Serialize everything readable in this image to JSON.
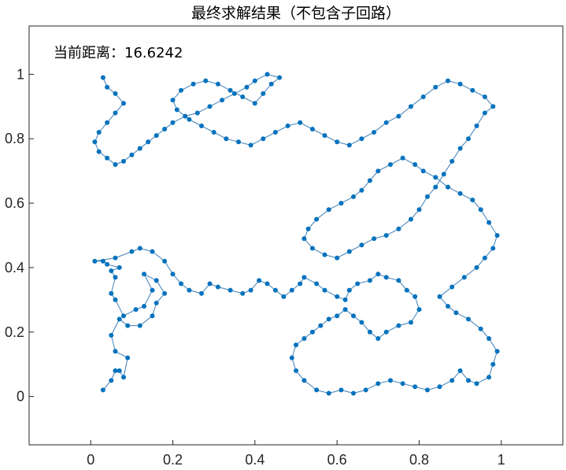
{
  "chart_data": {
    "type": "line",
    "title": "最终求解结果（不包含子回路）",
    "annotation": "当前距离：16.6242",
    "xlabel": "",
    "ylabel": "",
    "xlim": [
      -0.15,
      1.15
    ],
    "ylim": [
      -0.15,
      1.15
    ],
    "x_ticks": [
      0,
      0.2,
      0.4,
      0.6,
      0.8,
      1
    ],
    "y_ticks": [
      0,
      0.2,
      0.4,
      0.6,
      0.8,
      1
    ],
    "x_tick_labels": [
      "0",
      "0.2",
      "0.4",
      "0.6",
      "0.8",
      "1"
    ],
    "y_tick_labels": [
      "0",
      "0.2",
      "0.4",
      "0.6",
      "0.8",
      "1"
    ],
    "grid": false,
    "line_color": "#3f7fb8",
    "marker_color": "#0072bd",
    "route": [
      [
        0.03,
        0.02
      ],
      [
        0.05,
        0.05
      ],
      [
        0.06,
        0.08
      ],
      [
        0.07,
        0.08
      ],
      [
        0.08,
        0.06
      ],
      [
        0.09,
        0.12
      ],
      [
        0.06,
        0.14
      ],
      [
        0.05,
        0.19
      ],
      [
        0.07,
        0.24
      ],
      [
        0.09,
        0.22
      ],
      [
        0.12,
        0.22
      ],
      [
        0.15,
        0.25
      ],
      [
        0.16,
        0.29
      ],
      [
        0.18,
        0.32
      ],
      [
        0.16,
        0.36
      ],
      [
        0.13,
        0.38
      ],
      [
        0.15,
        0.33
      ],
      [
        0.13,
        0.28
      ],
      [
        0.11,
        0.27
      ],
      [
        0.08,
        0.25
      ],
      [
        0.06,
        0.3
      ],
      [
        0.05,
        0.32
      ],
      [
        0.06,
        0.37
      ],
      [
        0.05,
        0.39
      ],
      [
        0.07,
        0.4
      ],
      [
        0.04,
        0.41
      ],
      [
        0.03,
        0.42
      ],
      [
        0.01,
        0.42
      ],
      [
        0.06,
        0.43
      ],
      [
        0.1,
        0.45
      ],
      [
        0.12,
        0.46
      ],
      [
        0.15,
        0.45
      ],
      [
        0.18,
        0.42
      ],
      [
        0.2,
        0.38
      ],
      [
        0.22,
        0.35
      ],
      [
        0.24,
        0.33
      ],
      [
        0.27,
        0.32
      ],
      [
        0.29,
        0.35
      ],
      [
        0.31,
        0.34
      ],
      [
        0.34,
        0.33
      ],
      [
        0.37,
        0.32
      ],
      [
        0.39,
        0.33
      ],
      [
        0.41,
        0.36
      ],
      [
        0.43,
        0.35
      ],
      [
        0.45,
        0.33
      ],
      [
        0.47,
        0.31
      ],
      [
        0.49,
        0.33
      ],
      [
        0.51,
        0.35
      ],
      [
        0.52,
        0.37
      ],
      [
        0.55,
        0.35
      ],
      [
        0.57,
        0.33
      ],
      [
        0.6,
        0.31
      ],
      [
        0.62,
        0.3
      ],
      [
        0.63,
        0.33
      ],
      [
        0.65,
        0.35
      ],
      [
        0.68,
        0.36
      ],
      [
        0.7,
        0.38
      ],
      [
        0.72,
        0.37
      ],
      [
        0.75,
        0.36
      ],
      [
        0.77,
        0.33
      ],
      [
        0.79,
        0.31
      ],
      [
        0.8,
        0.27
      ],
      [
        0.78,
        0.23
      ],
      [
        0.75,
        0.22
      ],
      [
        0.72,
        0.2
      ],
      [
        0.7,
        0.18
      ],
      [
        0.68,
        0.2
      ],
      [
        0.66,
        0.23
      ],
      [
        0.64,
        0.25
      ],
      [
        0.62,
        0.27
      ],
      [
        0.6,
        0.25
      ],
      [
        0.58,
        0.24
      ],
      [
        0.56,
        0.22
      ],
      [
        0.54,
        0.2
      ],
      [
        0.52,
        0.18
      ],
      [
        0.5,
        0.16
      ],
      [
        0.49,
        0.12
      ],
      [
        0.5,
        0.08
      ],
      [
        0.52,
        0.05
      ],
      [
        0.55,
        0.02
      ],
      [
        0.58,
        0.01
      ],
      [
        0.61,
        0.02
      ],
      [
        0.64,
        0.01
      ],
      [
        0.67,
        0.02
      ],
      [
        0.7,
        0.04
      ],
      [
        0.73,
        0.05
      ],
      [
        0.76,
        0.04
      ],
      [
        0.79,
        0.03
      ],
      [
        0.82,
        0.02
      ],
      [
        0.85,
        0.03
      ],
      [
        0.88,
        0.05
      ],
      [
        0.9,
        0.08
      ],
      [
        0.92,
        0.05
      ],
      [
        0.94,
        0.04
      ],
      [
        0.97,
        0.06
      ],
      [
        0.98,
        0.1
      ],
      [
        0.99,
        0.14
      ],
      [
        0.97,
        0.18
      ],
      [
        0.95,
        0.21
      ],
      [
        0.92,
        0.24
      ],
      [
        0.89,
        0.26
      ],
      [
        0.87,
        0.28
      ],
      [
        0.85,
        0.31
      ],
      [
        0.88,
        0.34
      ],
      [
        0.91,
        0.37
      ],
      [
        0.94,
        0.4
      ],
      [
        0.96,
        0.43
      ],
      [
        0.98,
        0.46
      ],
      [
        0.99,
        0.5
      ],
      [
        0.97,
        0.54
      ],
      [
        0.95,
        0.58
      ],
      [
        0.93,
        0.61
      ],
      [
        0.9,
        0.63
      ],
      [
        0.87,
        0.65
      ],
      [
        0.84,
        0.68
      ],
      [
        0.81,
        0.7
      ],
      [
        0.79,
        0.72
      ],
      [
        0.76,
        0.74
      ],
      [
        0.73,
        0.72
      ],
      [
        0.7,
        0.7
      ],
      [
        0.68,
        0.67
      ],
      [
        0.66,
        0.64
      ],
      [
        0.64,
        0.62
      ],
      [
        0.61,
        0.6
      ],
      [
        0.58,
        0.58
      ],
      [
        0.55,
        0.55
      ],
      [
        0.53,
        0.52
      ],
      [
        0.52,
        0.49
      ],
      [
        0.54,
        0.46
      ],
      [
        0.57,
        0.44
      ],
      [
        0.6,
        0.43
      ],
      [
        0.63,
        0.45
      ],
      [
        0.66,
        0.47
      ],
      [
        0.69,
        0.49
      ],
      [
        0.72,
        0.5
      ],
      [
        0.75,
        0.52
      ],
      [
        0.78,
        0.55
      ],
      [
        0.8,
        0.58
      ],
      [
        0.82,
        0.62
      ],
      [
        0.84,
        0.65
      ],
      [
        0.86,
        0.69
      ],
      [
        0.88,
        0.73
      ],
      [
        0.9,
        0.77
      ],
      [
        0.92,
        0.8
      ],
      [
        0.94,
        0.84
      ],
      [
        0.96,
        0.88
      ],
      [
        0.98,
        0.9
      ],
      [
        0.96,
        0.93
      ],
      [
        0.93,
        0.95
      ],
      [
        0.9,
        0.97
      ],
      [
        0.87,
        0.98
      ],
      [
        0.84,
        0.96
      ],
      [
        0.81,
        0.93
      ],
      [
        0.78,
        0.9
      ],
      [
        0.75,
        0.87
      ],
      [
        0.72,
        0.85
      ],
      [
        0.69,
        0.82
      ],
      [
        0.66,
        0.8
      ],
      [
        0.63,
        0.78
      ],
      [
        0.6,
        0.79
      ],
      [
        0.57,
        0.81
      ],
      [
        0.54,
        0.83
      ],
      [
        0.51,
        0.85
      ],
      [
        0.48,
        0.84
      ],
      [
        0.45,
        0.82
      ],
      [
        0.42,
        0.8
      ],
      [
        0.39,
        0.78
      ],
      [
        0.36,
        0.79
      ],
      [
        0.33,
        0.8
      ],
      [
        0.3,
        0.82
      ],
      [
        0.27,
        0.84
      ],
      [
        0.24,
        0.86
      ],
      [
        0.21,
        0.89
      ],
      [
        0.2,
        0.92
      ],
      [
        0.22,
        0.95
      ],
      [
        0.25,
        0.97
      ],
      [
        0.28,
        0.98
      ],
      [
        0.31,
        0.97
      ],
      [
        0.34,
        0.95
      ],
      [
        0.37,
        0.93
      ],
      [
        0.4,
        0.91
      ],
      [
        0.42,
        0.94
      ],
      [
        0.44,
        0.97
      ],
      [
        0.46,
        0.99
      ],
      [
        0.43,
        1.0
      ],
      [
        0.4,
        0.98
      ],
      [
        0.38,
        0.96
      ],
      [
        0.35,
        0.94
      ],
      [
        0.32,
        0.92
      ],
      [
        0.29,
        0.9
      ],
      [
        0.26,
        0.88
      ],
      [
        0.23,
        0.87
      ],
      [
        0.2,
        0.85
      ],
      [
        0.18,
        0.83
      ],
      [
        0.16,
        0.81
      ],
      [
        0.14,
        0.79
      ],
      [
        0.12,
        0.77
      ],
      [
        0.1,
        0.75
      ],
      [
        0.08,
        0.73
      ],
      [
        0.06,
        0.72
      ],
      [
        0.04,
        0.74
      ],
      [
        0.02,
        0.76
      ],
      [
        0.01,
        0.79
      ],
      [
        0.02,
        0.82
      ],
      [
        0.04,
        0.85
      ],
      [
        0.06,
        0.88
      ],
      [
        0.08,
        0.91
      ],
      [
        0.06,
        0.94
      ],
      [
        0.04,
        0.96
      ],
      [
        0.03,
        0.99
      ]
    ]
  }
}
